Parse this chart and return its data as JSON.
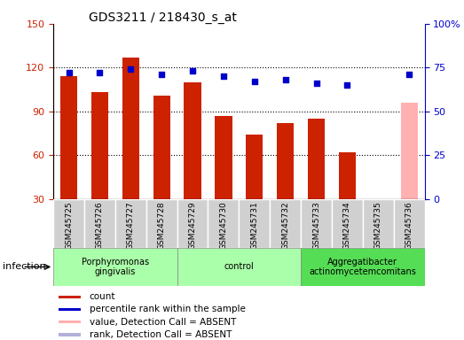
{
  "title": "GDS3211 / 218430_s_at",
  "samples": [
    "GSM245725",
    "GSM245726",
    "GSM245727",
    "GSM245728",
    "GSM245729",
    "GSM245730",
    "GSM245731",
    "GSM245732",
    "GSM245733",
    "GSM245734",
    "GSM245735",
    "GSM245736"
  ],
  "counts": [
    114,
    103,
    127,
    101,
    110,
    87,
    74,
    82,
    85,
    62,
    28,
    96
  ],
  "percentile_ranks": [
    72,
    72,
    74,
    71,
    73,
    70,
    67,
    68,
    66,
    65,
    null,
    71
  ],
  "absent_indices": [
    10,
    11
  ],
  "absent_rank_indices": [
    10
  ],
  "ylim_left": [
    30,
    150
  ],
  "ylim_right": [
    0,
    100
  ],
  "yticks_left": [
    30,
    60,
    90,
    120,
    150
  ],
  "yticks_right": [
    0,
    25,
    50,
    75,
    100
  ],
  "ytick_right_labels": [
    "0",
    "25",
    "50",
    "75",
    "100%"
  ],
  "bar_color": "#cc2200",
  "dot_color": "#0000cc",
  "absent_bar_color": "#ffb0b0",
  "absent_dot_color": "#b0b0d8",
  "grid_lines": [
    60,
    90,
    120
  ],
  "groups": [
    {
      "label": "Porphyromonas\ngingivalis",
      "indices": [
        0,
        1,
        2,
        3
      ],
      "color": "#aaffaa"
    },
    {
      "label": "control",
      "indices": [
        4,
        5,
        6,
        7
      ],
      "color": "#aaffaa"
    },
    {
      "label": "Aggregatibacter\nactinomycetemcomitans",
      "indices": [
        8,
        9,
        10,
        11
      ],
      "color": "#55dd55"
    }
  ],
  "sample_bg_color": "#d0d0d0",
  "sample_border_color": "#ffffff",
  "infection_label": "infection",
  "legend_items": [
    {
      "color": "#cc2200",
      "label": "count"
    },
    {
      "color": "#0000cc",
      "label": "percentile rank within the sample"
    },
    {
      "color": "#ffb0b0",
      "label": "value, Detection Call = ABSENT"
    },
    {
      "color": "#b0b0d8",
      "label": "rank, Detection Call = ABSENT"
    }
  ]
}
